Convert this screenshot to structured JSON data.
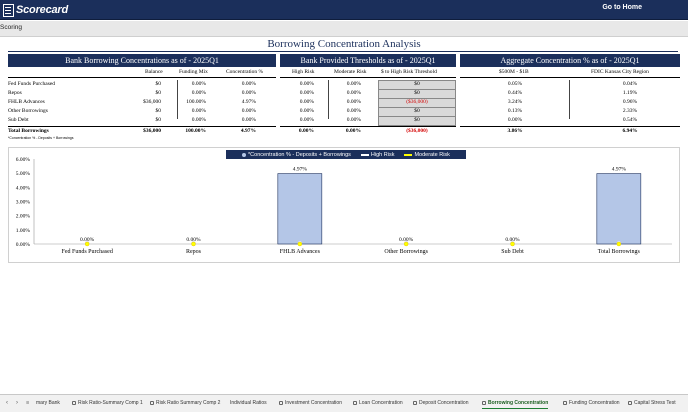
{
  "app": {
    "logo_text": "Scorecard",
    "go_home": "Go to Home",
    "subtitle": "Scoring"
  },
  "page": {
    "title": "Borrowing Concentration Analysis"
  },
  "sections": {
    "bank": {
      "title": "Bank Borrowing Concentrations as of - 2025Q1",
      "columns": [
        "Balance",
        "Funding Mix",
        "Concentration %"
      ],
      "rows": [
        {
          "label": "Fed Funds Purchased",
          "balance": "$0",
          "mix": "0.00%",
          "conc": "0.00%"
        },
        {
          "label": "Repos",
          "balance": "$0",
          "mix": "0.00%",
          "conc": "0.00%"
        },
        {
          "label": "FHLB Advances",
          "balance": "$36,000",
          "mix": "100.00%",
          "conc": "4.97%"
        },
        {
          "label": "Other Borrowings",
          "balance": "$0",
          "mix": "0.00%",
          "conc": "0.00%"
        },
        {
          "label": "Sub Debt",
          "balance": "$0",
          "mix": "0.00%",
          "conc": "0.00%"
        }
      ],
      "total": {
        "label": "Total Borrowings",
        "balance": "$36,000",
        "mix": "100.00%",
        "conc": "4.97%"
      },
      "footnote": "*Concentration % - Deposits + Borrowings"
    },
    "thresholds": {
      "title": "Bank Provided Thresholds as of - 2025Q1",
      "columns": [
        "High Risk",
        "Moderate Risk",
        "$ to High Risk Threshold"
      ],
      "rows": [
        {
          "high": "0.00%",
          "moderate": "0.00%",
          "dollars": "$0",
          "negative": false
        },
        {
          "high": "0.00%",
          "moderate": "0.00%",
          "dollars": "$0",
          "negative": false
        },
        {
          "high": "0.00%",
          "moderate": "0.00%",
          "dollars": "($36,000)",
          "negative": true
        },
        {
          "high": "0.00%",
          "moderate": "0.00%",
          "dollars": "$0",
          "negative": false
        },
        {
          "high": "0.00%",
          "moderate": "0.00%",
          "dollars": "$0",
          "negative": false
        }
      ],
      "total": {
        "high": "0.00%",
        "moderate": "0.00%",
        "dollars": "($36,000)",
        "negative": true
      }
    },
    "aggregate": {
      "title": "Aggregate Concentration % as of - 2025Q1",
      "columns": [
        "$500M - $1B",
        "FDIC Kansas City Region"
      ],
      "rows": [
        {
          "a": "0.05%",
          "b": "0.04%"
        },
        {
          "a": "0.44%",
          "b": "1.19%"
        },
        {
          "a": "3.24%",
          "b": "0.96%"
        },
        {
          "a": "0.13%",
          "b": "2.33%"
        },
        {
          "a": "0.00%",
          "b": "0.54%"
        }
      ],
      "total": {
        "a": "3.86%",
        "b": "6.94%"
      }
    }
  },
  "chart_data": {
    "type": "bar",
    "categories": [
      "Fed Funds Purchased",
      "Repos",
      "FHLB Advances",
      "Other Borrowings",
      "Sub Debt",
      "Total Borrowings"
    ],
    "series": [
      {
        "name": "*Concentration % - Deposits + Borrowings",
        "values": [
          0.0,
          0.0,
          4.97,
          0.0,
          0.0,
          4.97
        ],
        "color": "#b4c6e7",
        "kind": "bar"
      },
      {
        "name": "High Risk",
        "values": [
          0.0,
          0.0,
          0.0,
          0.0,
          0.0,
          0.0
        ],
        "color": "#ffffff",
        "kind": "line"
      },
      {
        "name": "Moderate Risk",
        "values": [
          0.0,
          0.0,
          0.0,
          0.0,
          0.0,
          0.0
        ],
        "color": "#ffff00",
        "kind": "line"
      }
    ],
    "data_labels": [
      "0.00%",
      "0.00%",
      "4.97%",
      "0.00%",
      "0.00%",
      "4.97%"
    ],
    "yticks": [
      "0.00%",
      "1.00%",
      "2.00%",
      "3.00%",
      "4.00%",
      "5.00%",
      "6.00%"
    ],
    "ylim": [
      0,
      6
    ],
    "legend_position": "top-center",
    "grid": false
  },
  "tabs": {
    "items": [
      {
        "label": "mary Bank",
        "icon": false
      },
      {
        "label": "Risk Ratio-Summary Comp 1",
        "icon": true
      },
      {
        "label": "Risk Ratio Summary Comp 2",
        "icon": true
      },
      {
        "label": "Individual Ratios",
        "icon": false
      },
      {
        "label": "Investment Concentration",
        "icon": true
      },
      {
        "label": "Loan Concentration",
        "icon": true
      },
      {
        "label": "Deposit Concentration",
        "icon": true
      },
      {
        "label": "Borrowing Concentration",
        "icon": true,
        "active": true
      },
      {
        "label": "Funding Concentration",
        "icon": true
      },
      {
        "label": "Capital Stress Test",
        "icon": true
      }
    ]
  }
}
